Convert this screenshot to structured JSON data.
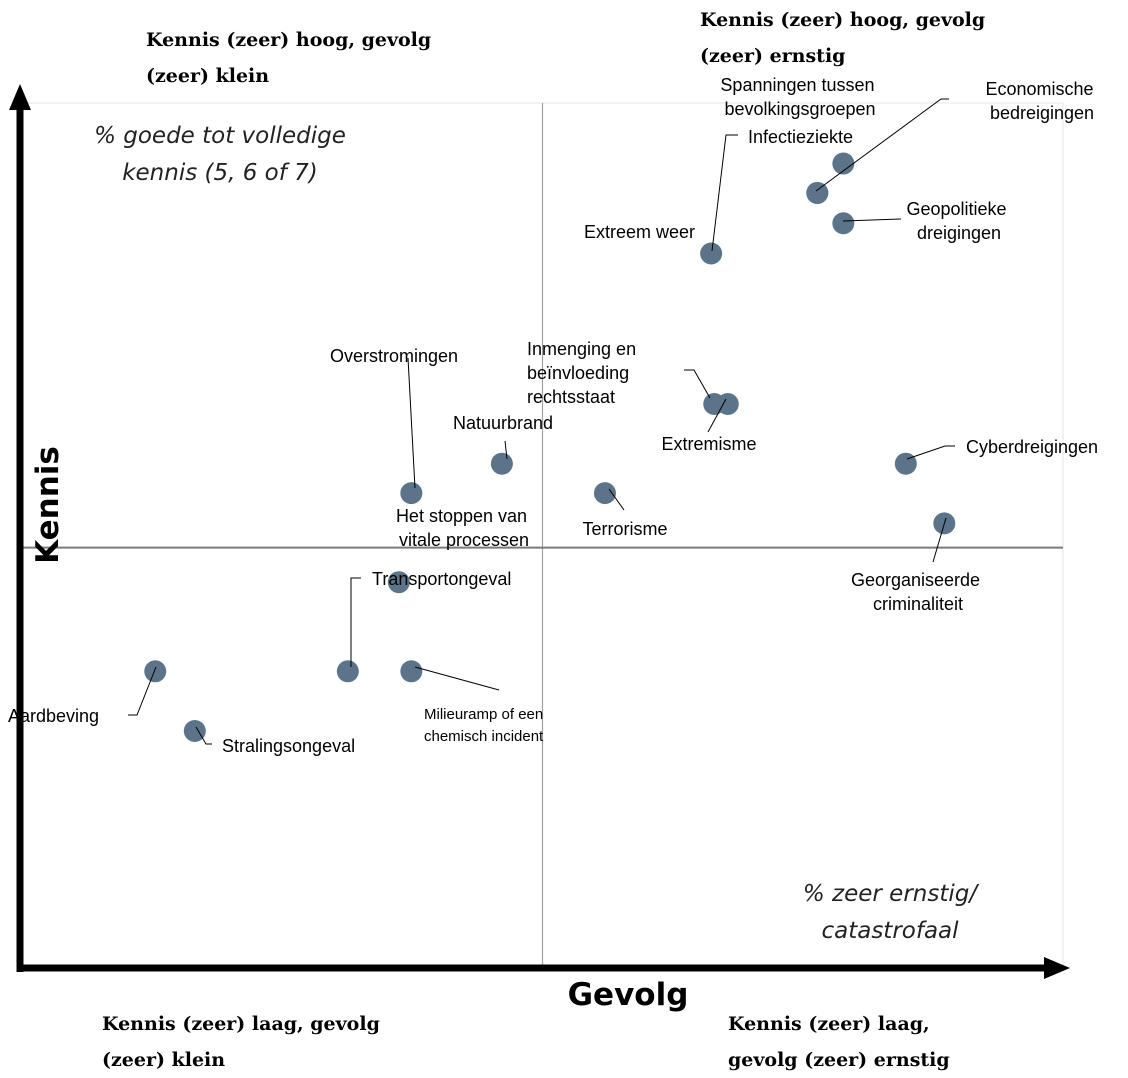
{
  "quadrants": {
    "top_left": "Kennis (zeer) hoog, gevolg (zeer) klein",
    "top_right": "Kennis (zeer) hoog, gevolg (zeer) ernstig",
    "bottom_left": "Kennis (zeer) laag, gevolg (zeer) klein",
    "bottom_right": "Kennis (zeer) laag, gevolg (zeer) ernstig"
  },
  "annotations": {
    "y_measure": "% goede tot volledige kennis (5, 6 of 7)",
    "x_measure": "% zeer ernstig/ catastrofaal"
  },
  "chart_data": {
    "type": "scatter",
    "xlabel": "Gevolg",
    "ylabel": "Kennis",
    "xlim": [
      0,
      100
    ],
    "ylim": [
      0,
      100
    ],
    "quadrant_split": {
      "x": 50,
      "y": 48.6
    },
    "point_color": "#5b7489",
    "points": [
      {
        "label": "Spanningen tussen bevolkingsgroepen",
        "x": 78.9,
        "y": 93.0
      },
      {
        "label": "Infectieziekte",
        "x": 76.4,
        "y": 89.6
      },
      {
        "label": "Economische bedreigingen",
        "x": 76.4,
        "y": 89.6
      },
      {
        "label": "Geopolitieke dreigingen",
        "x": 78.9,
        "y": 86.1
      },
      {
        "label": "Extreem weer",
        "x": 66.2,
        "y": 82.6
      },
      {
        "label": "Inmenging en beïnvloeding rechtsstaat",
        "x": 66.5,
        "y": 65.2
      },
      {
        "label": "Extremisme",
        "x": 67.8,
        "y": 65.2
      },
      {
        "label": "Natuurbrand",
        "x": 46.1,
        "y": 58.3
      },
      {
        "label": "Overstromingen",
        "x": 37.4,
        "y": 54.9
      },
      {
        "label": "Terrorisme",
        "x": 56.0,
        "y": 54.9
      },
      {
        "label": "Cyberdreigingen",
        "x": 84.9,
        "y": 58.3
      },
      {
        "label": "Georganiseerde criminaliteit",
        "x": 88.6,
        "y": 51.4
      },
      {
        "label": "Het stoppen van vitale processen",
        "x": 36.2,
        "y": 44.6
      },
      {
        "label": "Transportongeval",
        "x": 31.3,
        "y": 34.3
      },
      {
        "label": "Milieuramp of een chemisch incident",
        "x": 37.4,
        "y": 34.3
      },
      {
        "label": "Aardbeving",
        "x": 12.8,
        "y": 34.3
      },
      {
        "label": "Stralingsongeval",
        "x": 16.6,
        "y": 27.4
      }
    ]
  }
}
